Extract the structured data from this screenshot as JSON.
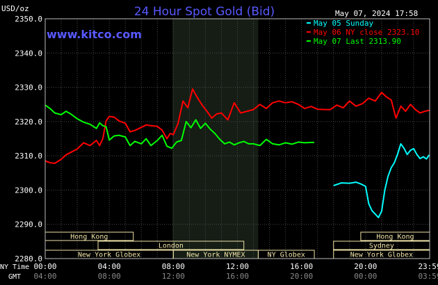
{
  "chart_data": {
    "type": "line",
    "title": "24 Hour Spot Gold (Bid)",
    "website": "www.kitco.com",
    "unit_label": "USD/oz",
    "timestamp": "May 07, 2024 17:58",
    "ylim": [
      2280,
      2350
    ],
    "y_ticks": [
      "2350.0",
      "2340.0",
      "2330.0",
      "2320.0",
      "2310.0",
      "2300.0",
      "2290.0",
      "2280.0"
    ],
    "x_ticks_ny": [
      "00:00",
      "04:00",
      "08:00",
      "12:00",
      "16:00",
      "20:00",
      "23:59"
    ],
    "x_ticks_gmt": [
      "04:00",
      "08:00",
      "12:00",
      "16:00",
      "20:00",
      "00:00",
      "03:59"
    ],
    "x_label_ny": "NY Time",
    "x_label_gmt": "GMT",
    "nymex_session_hours": [
      7.95,
      13.3
    ],
    "colors": {
      "sunday": "#00ffff",
      "ny_close": "#ff0000",
      "last": "#00ff00",
      "title": "#5858ff",
      "session_bar": "#f0e4a8"
    },
    "legend": [
      {
        "label": "May 05 Sunday",
        "color": "#00ffff"
      },
      {
        "label": "May 06 NY close 2323.10",
        "color": "#ff0000"
      },
      {
        "label": "May 07 Last 2313.90",
        "color": "#00ff00"
      }
    ],
    "sessions": [
      {
        "label": "Hong Kong",
        "start": 0,
        "end": 5.5,
        "row": 0
      },
      {
        "label": "Hong Kong",
        "start": 19.7,
        "end": 24,
        "row": 0
      },
      {
        "label": "London",
        "start": 3.3,
        "end": 12.4,
        "row": 1
      },
      {
        "label": "Sydney",
        "start": 18.0,
        "end": 24,
        "row": 1
      },
      {
        "label": "New York Globex",
        "start": 0,
        "end": 8.0,
        "row": 2
      },
      {
        "label": "New York NYMEX",
        "start": 8.0,
        "end": 13.3,
        "row": 2
      },
      {
        "label": "NY Globex",
        "start": 13.3,
        "end": 16.8,
        "row": 2
      },
      {
        "label": "New York Globex",
        "start": 18.0,
        "end": 24,
        "row": 2
      }
    ],
    "series": [
      {
        "name": "May 05 Sunday",
        "color": "#00ffff",
        "x": [
          18.0,
          18.5,
          19.0,
          19.4,
          19.7,
          20.0,
          20.2,
          20.4,
          20.6,
          20.8,
          21.0,
          21.2,
          21.4,
          21.6,
          21.8,
          22.0,
          22.2,
          22.4,
          22.6,
          22.8,
          23.0,
          23.2,
          23.4,
          23.6,
          23.8,
          23.98
        ],
        "y": [
          2301.3,
          2302.1,
          2302.0,
          2302.3,
          2301.8,
          2301.1,
          2296.0,
          2294.0,
          2293.0,
          2292.0,
          2293.8,
          2300.0,
          2304.0,
          2306.5,
          2308.0,
          2310.5,
          2313.5,
          2312.2,
          2310.4,
          2311.6,
          2312.1,
          2310.4,
          2309.2,
          2309.7,
          2309.1,
          2310.3
        ]
      },
      {
        "name": "May 06 NY close 2323.10",
        "color": "#ff0000",
        "x": [
          0,
          0.3,
          0.6,
          1.0,
          1.3,
          1.6,
          2.0,
          2.4,
          2.8,
          3.2,
          3.4,
          3.6,
          3.8,
          4.0,
          4.3,
          4.6,
          5.0,
          5.3,
          5.6,
          6.0,
          6.3,
          6.6,
          7.0,
          7.3,
          7.6,
          7.8,
          8.0,
          8.3,
          8.6,
          8.9,
          9.2,
          9.5,
          9.8,
          10.1,
          10.4,
          10.7,
          11.0,
          11.4,
          11.8,
          12.2,
          12.6,
          13.0,
          13.4,
          13.8,
          14.2,
          14.6,
          15.0,
          15.4,
          15.8,
          16.2,
          16.6,
          17.0,
          17.4,
          17.8,
          18.2,
          18.6,
          19.0,
          19.4,
          19.8,
          20.2,
          20.6,
          21.0,
          21.3,
          21.6,
          21.9,
          22.2,
          22.5,
          22.8,
          23.1,
          23.4,
          23.7,
          23.98
        ],
        "y": [
          2308.5,
          2308.0,
          2307.8,
          2309.0,
          2310.3,
          2311.0,
          2312.0,
          2313.8,
          2313.0,
          2314.5,
          2313.0,
          2315.0,
          2320.2,
          2321.5,
          2321.3,
          2320.2,
          2319.5,
          2317.0,
          2317.4,
          2318.3,
          2319.0,
          2318.8,
          2318.6,
          2317.5,
          2315.0,
          2316.5,
          2316.2,
          2319.5,
          2326.0,
          2324.0,
          2329.5,
          2327.0,
          2324.8,
          2323.0,
          2321.0,
          2322.2,
          2322.5,
          2320.5,
          2325.5,
          2322.5,
          2323.0,
          2323.5,
          2325.0,
          2323.8,
          2325.5,
          2326.0,
          2325.5,
          2325.8,
          2325.0,
          2323.8,
          2324.4,
          2323.6,
          2323.5,
          2323.5,
          2324.8,
          2324.0,
          2326.0,
          2324.5,
          2325.2,
          2326.8,
          2326.0,
          2328.5,
          2327.2,
          2326.3,
          2321.0,
          2324.5,
          2323.0,
          2325.0,
          2323.5,
          2322.5,
          2323.0,
          2323.3
        ]
      },
      {
        "name": "May 07 Last 2313.90",
        "color": "#00ff00",
        "x": [
          0,
          0.3,
          0.6,
          1.0,
          1.3,
          1.6,
          2.0,
          2.4,
          2.8,
          3.2,
          3.4,
          3.6,
          3.8,
          4.0,
          4.3,
          4.6,
          5.0,
          5.3,
          5.6,
          6.0,
          6.3,
          6.6,
          7.0,
          7.3,
          7.6,
          7.9,
          8.2,
          8.5,
          8.8,
          9.1,
          9.4,
          9.7,
          10.0,
          10.3,
          10.6,
          10.9,
          11.2,
          11.5,
          11.8,
          12.1,
          12.4,
          12.7,
          13.0,
          13.4,
          13.8,
          14.2,
          14.6,
          15.0,
          15.4,
          15.8,
          16.2,
          16.6,
          16.8
        ],
        "y": [
          2324.8,
          2323.8,
          2322.5,
          2322.0,
          2323.0,
          2322.2,
          2320.8,
          2319.8,
          2319.2,
          2318.0,
          2319.6,
          2318.8,
          2318.5,
          2314.6,
          2315.8,
          2316.0,
          2315.5,
          2313.0,
          2314.2,
          2313.5,
          2315.0,
          2313.0,
          2314.5,
          2316.0,
          2312.8,
          2312.2,
          2314.0,
          2314.5,
          2320.0,
          2318.2,
          2320.5,
          2318.0,
          2319.5,
          2317.8,
          2316.5,
          2314.8,
          2313.5,
          2314.0,
          2313.2,
          2313.8,
          2314.2,
          2313.5,
          2313.5,
          2313.0,
          2314.8,
          2313.5,
          2313.2,
          2313.8,
          2313.4,
          2314.0,
          2313.8,
          2313.9,
          2313.9
        ]
      }
    ]
  }
}
